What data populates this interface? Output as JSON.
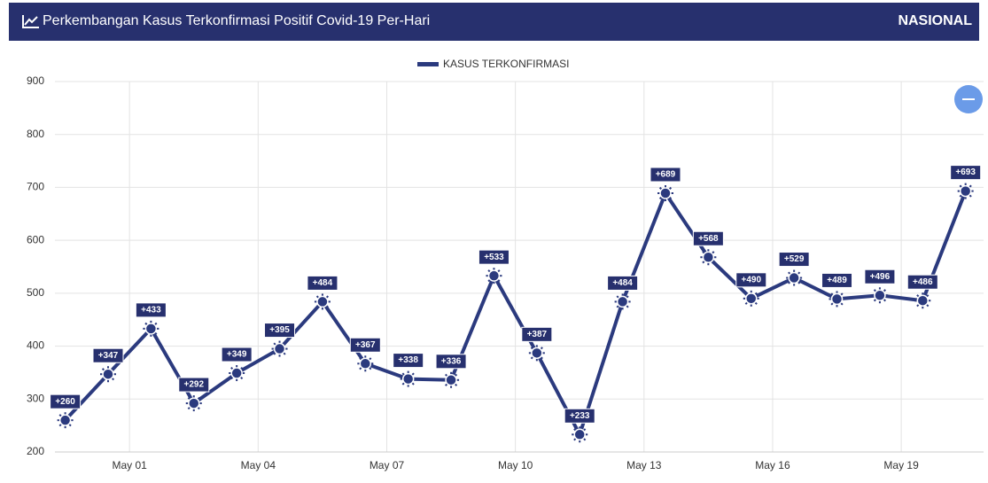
{
  "header": {
    "title": "Perkembangan Kasus Terkonfirmasi Positif Covid-19 Per-Hari",
    "region": "NASIONAL"
  },
  "chart_data": {
    "type": "line",
    "x": [
      -0.5,
      0.5,
      1.5,
      2.5,
      3.5,
      4.5,
      5.5,
      6.5,
      7.5,
      8.5,
      9.5,
      10.5,
      11.5,
      12.5,
      13.5,
      14.5,
      15.5,
      16.5,
      17.5,
      18.5,
      19.5,
      20.5
    ],
    "series": [
      {
        "name": "KASUS TERKONFIRMASI",
        "color": "#2b3a7e",
        "values": [
          260,
          347,
          433,
          292,
          349,
          395,
          484,
          367,
          338,
          336,
          533,
          387,
          233,
          484,
          689,
          568,
          490,
          529,
          489,
          496,
          486,
          693
        ],
        "value_labels": [
          "+260",
          "+347",
          "+433",
          "+292",
          "+349",
          "+395",
          "+484",
          "+367",
          "+338",
          "+336",
          "+533",
          "+387",
          "+233",
          "+484",
          "+689",
          "+568",
          "+490",
          "+529",
          "+489",
          "+496",
          "+486",
          "+693"
        ]
      }
    ],
    "xlim": [
      -0.74,
      20.92
    ],
    "xticks": [
      {
        "value": 1,
        "label": "May 01"
      },
      {
        "value": 4,
        "label": "May 04"
      },
      {
        "value": 7,
        "label": "May 07"
      },
      {
        "value": 10,
        "label": "May 10"
      },
      {
        "value": 13,
        "label": "May 13"
      },
      {
        "value": 16,
        "label": "May 16"
      },
      {
        "value": 19,
        "label": "May 19"
      }
    ],
    "ylim": [
      200,
      900
    ],
    "yticks": [
      200,
      300,
      400,
      500,
      600,
      700,
      800,
      900
    ],
    "grid": true,
    "legend": "top"
  }
}
